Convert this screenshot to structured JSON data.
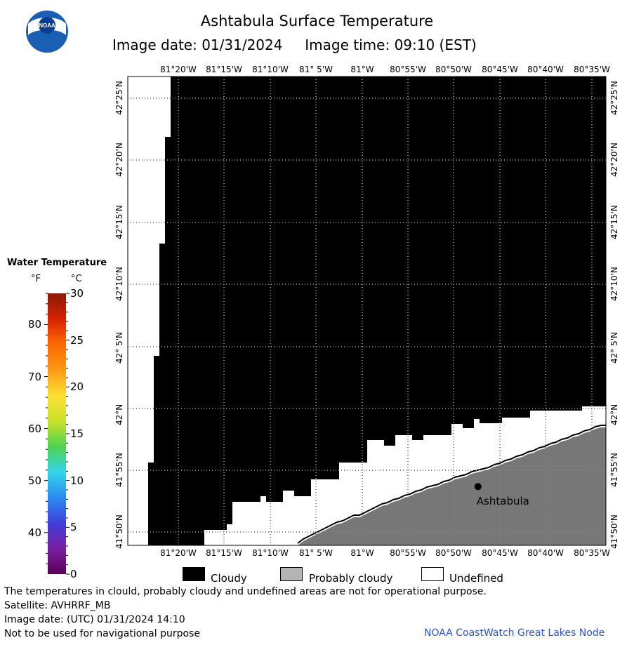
{
  "header": {
    "title": "Ashtabula Surface Temperature",
    "image_date_label": "Image date:",
    "image_date": "01/31/2024",
    "image_time_label": "Image time:",
    "image_time": "09:10 (EST)"
  },
  "logo": {
    "text": "NOAA",
    "icon": "noaa-logo"
  },
  "map": {
    "region": "Ashtabula",
    "lon_ticks": [
      "81°20'W",
      "81°15'W",
      "81°10'W",
      "81° 5'W",
      "81°W",
      "80°55'W",
      "80°50'W",
      "80°45'W",
      "80°40'W",
      "80°35'W"
    ],
    "lat_ticks": [
      "42°25'N",
      "42°20'N",
      "42°15'N",
      "42°10'N",
      "42° 5'N",
      "42°N",
      "41°55'N",
      "41°50'N"
    ],
    "city": {
      "name": "Ashtabula",
      "lon": -80.79,
      "lat": 41.895
    },
    "colors": {
      "cloudy": "#000000",
      "land": "#777777",
      "undefined": "#ffffff",
      "grid": "#000000"
    }
  },
  "legend": {
    "title": "Water Temperature",
    "unit_f": "°F",
    "unit_c": "°C",
    "fahrenheit_ticks": [
      "80",
      "70",
      "60",
      "50",
      "40"
    ],
    "celsius_ticks": [
      "30",
      "25",
      "20",
      "15",
      "10",
      "5",
      "0"
    ],
    "colormap": [
      "#5a005a",
      "#7a1fa0",
      "#3f3fd8",
      "#2a8cf0",
      "#33d6e8",
      "#4fd34f",
      "#c9e22a",
      "#ffe033",
      "#ff9a14",
      "#ff6a00",
      "#d42200",
      "#8a1a00"
    ]
  },
  "key": [
    {
      "label": "Cloudy",
      "color": "#000000"
    },
    {
      "label": "Probably cloudy",
      "color": "#b4b4b4"
    },
    {
      "label": "Undefined",
      "color": "#ffffff"
    }
  ],
  "footer": {
    "disclaimer": "The temperatures in clould, probably cloudy and undefined areas are not for operational purpose.",
    "satellite": "Satellite: AVHRRF_MB",
    "utc_date": "Image date: (UTC) 01/31/2024  14:10",
    "navigation": "Not to be used for navigational purpose",
    "credit": "NOAA CoastWatch Great Lakes Node"
  }
}
